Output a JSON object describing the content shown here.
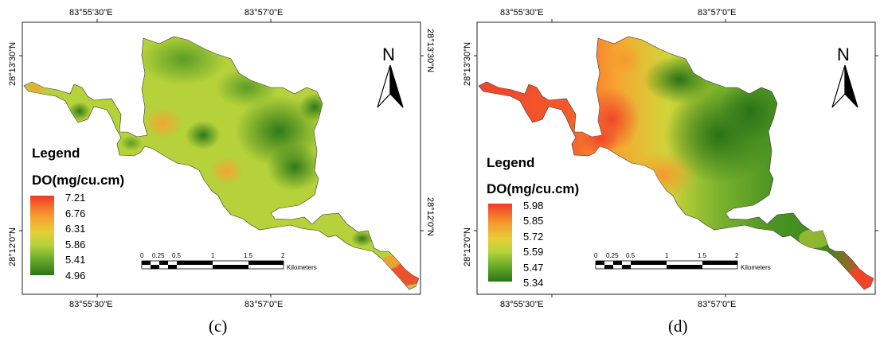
{
  "panels": [
    {
      "id": "c",
      "panel_label": "(c)",
      "coords": {
        "top_left": "83°55'30\"E",
        "top_right": "83°57'0\"E",
        "bottom_left": "83°55'30\"E",
        "bottom_right": "83°57'0\"E",
        "left_upper": "28°13'30\"N",
        "left_lower": "28°12'0\"N",
        "right_upper": "28°13'30\"N",
        "right_lower": "28°12'0\"N"
      },
      "north_arrow": "N",
      "legend": {
        "title": "Legend",
        "unit": "DO(mg/cu.cm)",
        "values": [
          "7.21",
          "6.76",
          "6.31",
          "5.86",
          "5.41",
          "4.96"
        ],
        "colors": [
          "#f0452a",
          "#f79a2e",
          "#e9c534",
          "#b9d43a",
          "#6fae2c",
          "#2f7a1a"
        ]
      },
      "scalebar": {
        "ticks": [
          "0",
          "0.25",
          "0.5",
          "1",
          "1.5",
          "2"
        ],
        "unit": "Kilometers"
      }
    },
    {
      "id": "d",
      "panel_label": "(d)",
      "coords": {
        "top_left": "83°55'30\"E",
        "top_right": "83°57'0\"E",
        "bottom_left": "83°55'30\"E",
        "bottom_right": "83°57'0\"E",
        "left_upper": "28°13'30\"N",
        "left_lower": "28°12'0\"N",
        "right_upper": "28°13'30\"N",
        "right_lower": "28°12'0\"N"
      },
      "north_arrow": "N",
      "legend": {
        "title": "Legend",
        "unit": "DO(mg/cu.cm)",
        "values": [
          "5.98",
          "5.85",
          "5.72",
          "5.59",
          "5.47",
          "5.34"
        ],
        "colors": [
          "#f03b28",
          "#f79a2e",
          "#e9c534",
          "#b9d43a",
          "#6fae2c",
          "#2f7a1a"
        ]
      },
      "scalebar": {
        "ticks": [
          "0",
          "0.25",
          "0.5",
          "1",
          "1.5",
          "2"
        ],
        "unit": "Kilometers"
      }
    }
  ]
}
